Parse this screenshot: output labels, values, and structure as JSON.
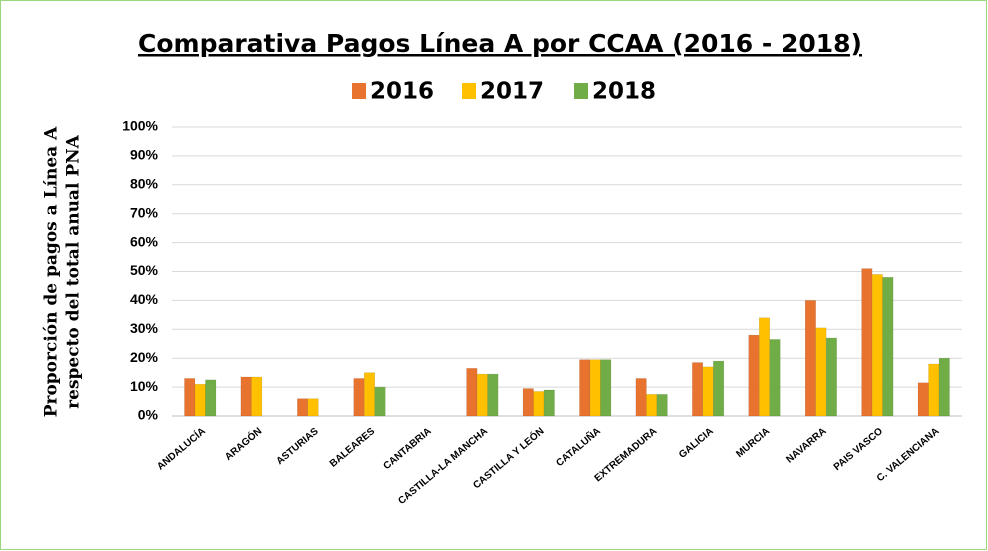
{
  "chart_data": {
    "type": "bar",
    "title": "Comparativa Pagos Línea A por CCAA (2016 - 2018)",
    "y_label": [
      "Proporción de pagos a Línea A",
      "respecto del total anual PNA"
    ],
    "categories": [
      "ANDALUCÍA",
      "ARAGÓN",
      "ASTURIAS",
      "BALEARES",
      "CANTABRIA",
      "CASTILLA-LA MANCHA",
      "CASTILLA Y LEÓN",
      "CATALUÑA",
      "EXTREMADURA",
      "GALICIA",
      "MURCIA",
      "NAVARRA",
      "PAIS VASCO",
      "C. VALENCIANA"
    ],
    "series": [
      {
        "name": "2016",
        "color": "#e8732e",
        "values": [
          13,
          13.5,
          6,
          13,
          null,
          16.5,
          9.5,
          19.5,
          13,
          18.5,
          28,
          40,
          51,
          11.5
        ]
      },
      {
        "name": "2017",
        "color": "#ffc000",
        "values": [
          11,
          13.5,
          6,
          15,
          null,
          14.5,
          8.5,
          19.5,
          7.5,
          17,
          34,
          30.5,
          49,
          18
        ]
      },
      {
        "name": "2018",
        "color": "#70ad47",
        "values": [
          12.5,
          null,
          null,
          10,
          null,
          14.5,
          9,
          19.5,
          7.5,
          19,
          26.5,
          27,
          48,
          20
        ]
      }
    ],
    "ylim": [
      0,
      100
    ],
    "yticks": [
      {
        "value": 0,
        "label": "0%"
      },
      {
        "value": 10,
        "label": "10%"
      },
      {
        "value": 20,
        "label": "20%"
      },
      {
        "value": 30,
        "label": "30%"
      },
      {
        "value": 40,
        "label": "40%"
      },
      {
        "value": 50,
        "label": "50%"
      },
      {
        "value": 60,
        "label": "60%"
      },
      {
        "value": 70,
        "label": "70%"
      },
      {
        "value": 80,
        "label": "80%"
      },
      {
        "value": 90,
        "label": "90%"
      },
      {
        "value": 100,
        "label": "100%"
      }
    ],
    "grid": true,
    "legend": "top"
  }
}
